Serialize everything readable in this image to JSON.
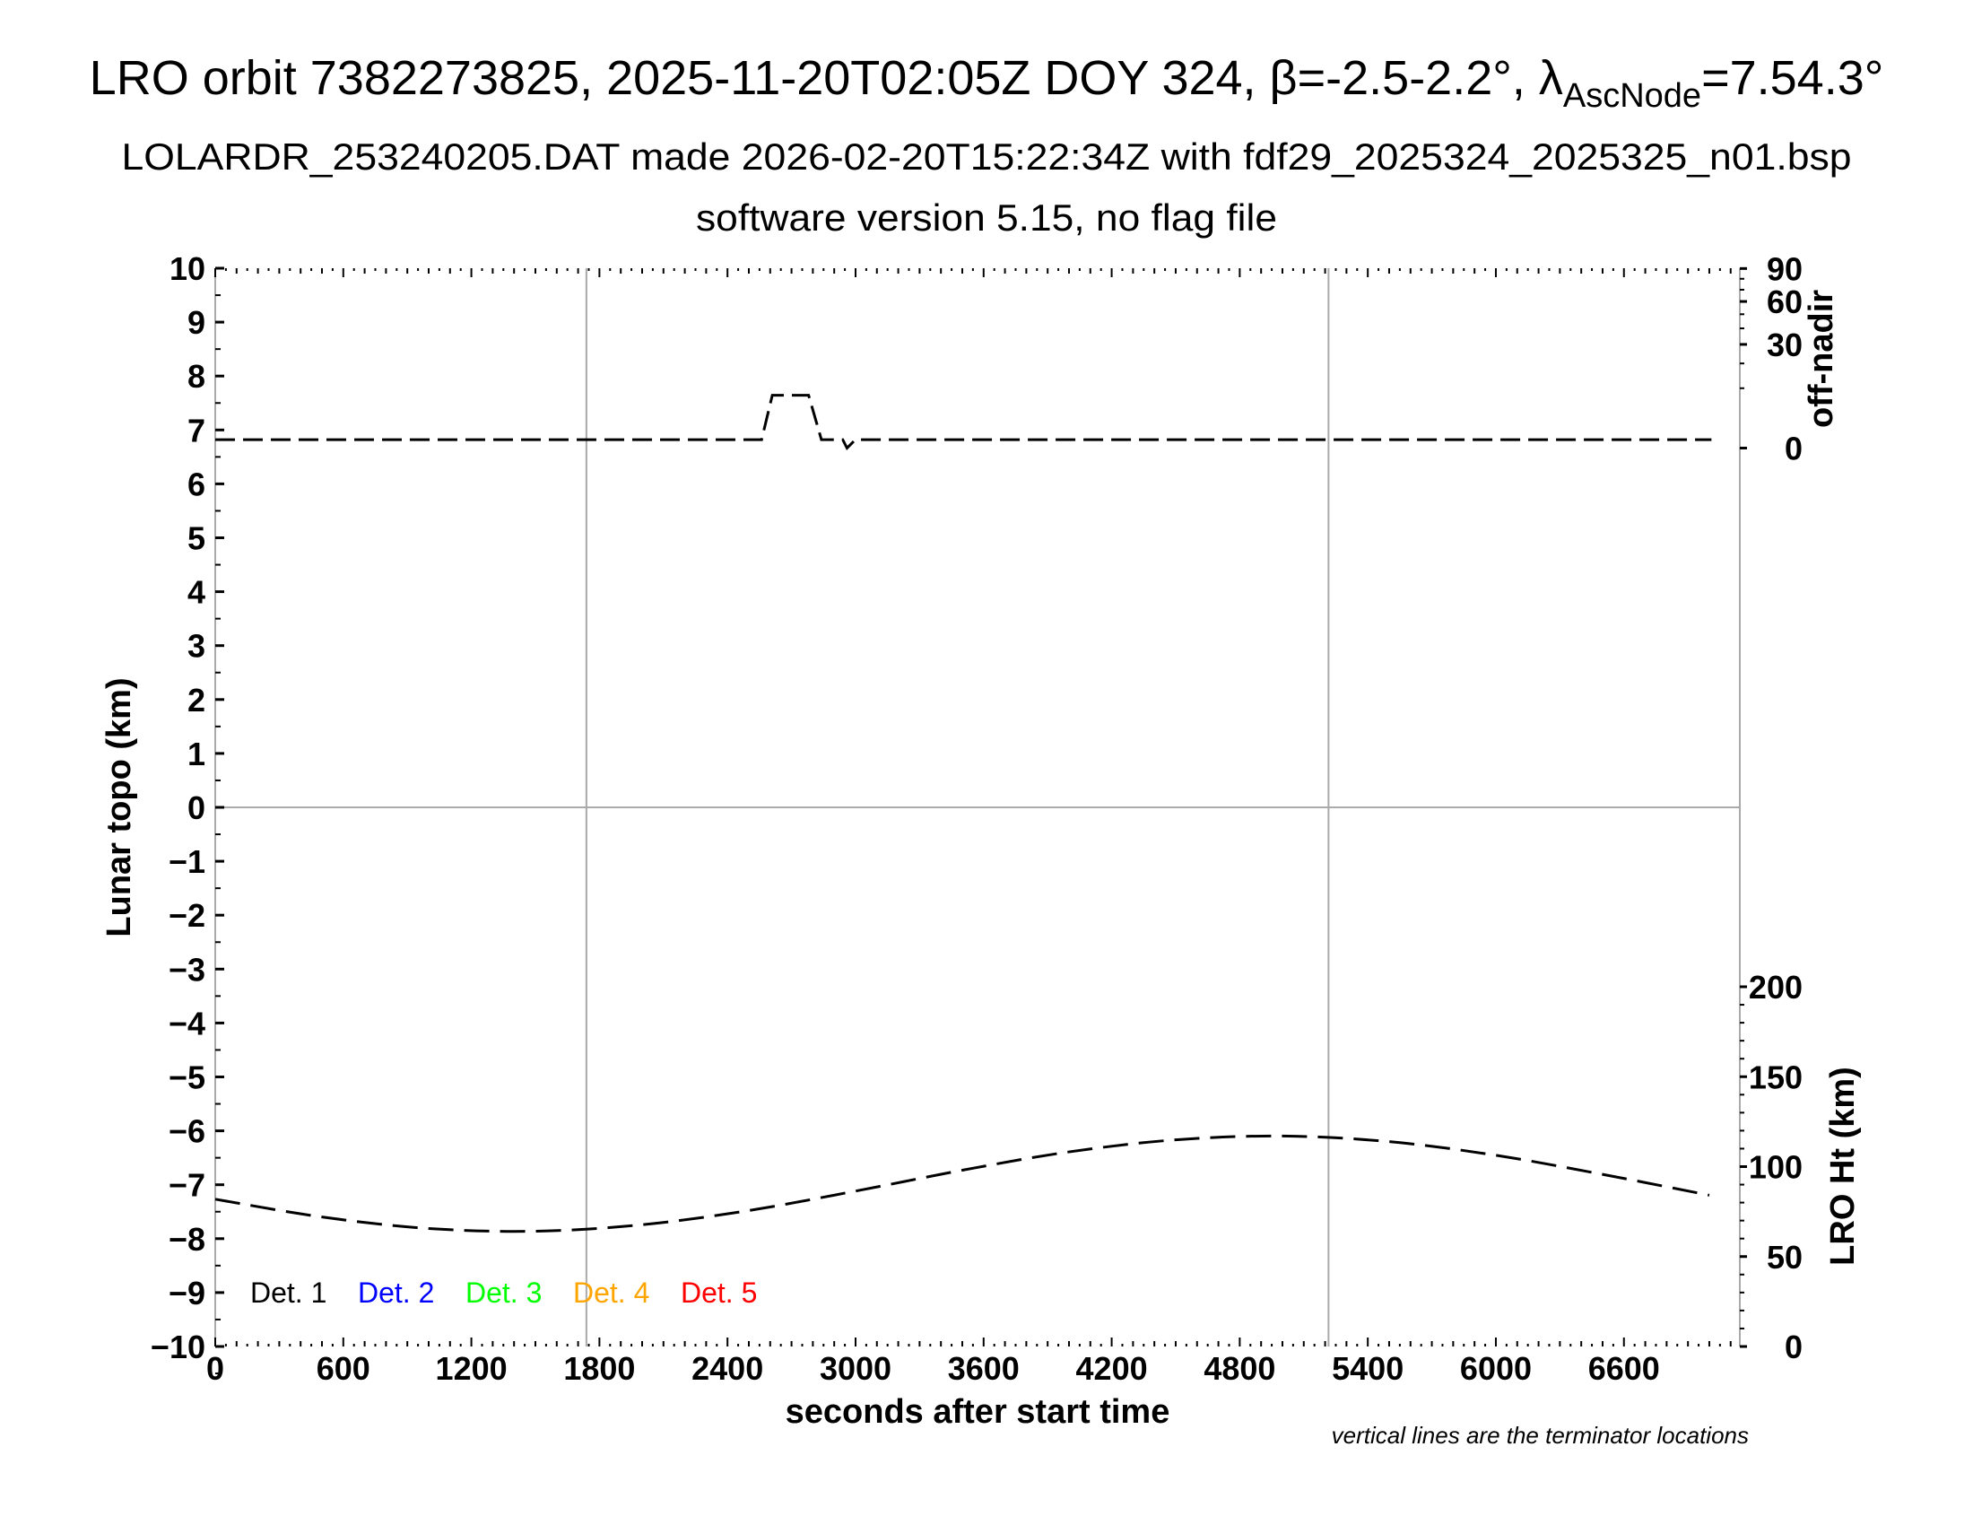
{
  "header": {
    "title_main": "LRO orbit 7382273825, 2025-11-20T02:05Z DOY 324, β=-2.5-2.2°, λ",
    "title_sub": "AscNode",
    "title_end": "=7.54.3°",
    "subtitle": "LOLARDR_253240205.DAT made 2026-02-20T15:22:34Z with fdf29_2025324_2025325_n01.bsp",
    "subtitle2": "software version 5.15, no flag file"
  },
  "chart_data": {
    "type": "line",
    "xlabel": "seconds after start time",
    "ylabel": "Lunar topo (km)",
    "y2label_top": "off-nadir",
    "y2label_bottom": "LRO Ht (km)",
    "xlim": [
      0,
      7143
    ],
    "ylim": [
      -10,
      10
    ],
    "x_ticks": [
      "0",
      "600",
      "1200",
      "1800",
      "2400",
      "3000",
      "3600",
      "4200",
      "4800",
      "5400",
      "6000",
      "6600"
    ],
    "y_ticks": [
      "10",
      "9",
      "8",
      "7",
      "6",
      "5",
      "4",
      "3",
      "2",
      "1",
      "0",
      "−1",
      "−2",
      "−3",
      "−4",
      "−5",
      "−6",
      "−7",
      "−8",
      "−9",
      "−10"
    ],
    "offnadir_ticks": [
      "90",
      "60",
      "30",
      "0"
    ],
    "lro_ht_ticks": [
      "200",
      "150",
      "100",
      "50",
      "0"
    ],
    "terminators": [
      1739,
      5216
    ],
    "grid": "terminator lines and zero line only",
    "legend": {
      "placement": "bottom-left",
      "entries": [
        {
          "label": "Det. 1",
          "color": "#000000"
        },
        {
          "label": "Det. 2",
          "color": "#0000ff"
        },
        {
          "label": "Det. 3",
          "color": "#00ff00"
        },
        {
          "label": "Det. 4",
          "color": "#ffa500"
        },
        {
          "label": "Det. 5",
          "color": "#ff0000"
        }
      ]
    },
    "note": "vertical lines are the terminator locations",
    "series": [
      {
        "axis": "off-nadir (deg)",
        "style": "dashed",
        "x": [
          0,
          2560,
          2610,
          2780,
          2840,
          2940,
          2960,
          3000,
          7010
        ],
        "values": [
          0.2,
          0.2,
          7.8,
          7.8,
          0.2,
          0.2,
          0.0,
          0.2,
          0.2
        ]
      },
      {
        "axis": "LRO Ht (km)",
        "style": "dashed",
        "x": [
          0,
          500,
          1000,
          1500,
          2000,
          2500,
          3000,
          3500,
          4000,
          4500,
          5000,
          5500,
          6000,
          6500,
          7000
        ],
        "values": [
          81.9,
          72.0,
          65.6,
          64.1,
          67.7,
          75.6,
          86.4,
          98.0,
          108.2,
          114.9,
          117.0,
          113.9,
          106.3,
          95.7,
          84.1
        ]
      }
    ]
  }
}
